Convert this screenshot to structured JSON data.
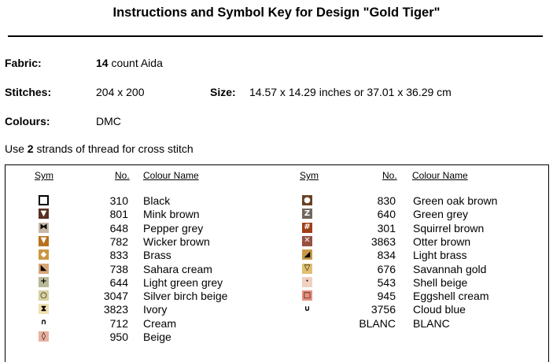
{
  "title": "Instructions and Symbol Key for Design \"Gold Tiger\"",
  "fabric": {
    "label": "Fabric:",
    "count": "14",
    "rest": " count Aida"
  },
  "stitches": {
    "label": "Stitches:",
    "value": "204 x 200"
  },
  "size": {
    "label": "Size:",
    "value": "14.57 x 14.29 inches or 37.01 x 36.29 cm"
  },
  "colours": {
    "label": "Colours:",
    "value": "DMC"
  },
  "usage": {
    "pre": "Use ",
    "strands": "2",
    "post": " strands of thread for cross stitch"
  },
  "headers": {
    "sym": "Sym",
    "no": "No.",
    "name": "Colour Name"
  },
  "left_rows": [
    {
      "glyph": "",
      "bg": "#ffffff",
      "fg": "#000000",
      "border": "#000000",
      "icon": "hollow-square-icon",
      "no": "310",
      "name": "Black"
    },
    {
      "glyph": "▼",
      "bg": "#5a3020",
      "fg": "#ffffff",
      "border": "#5a3020",
      "icon": "triangle-down-icon",
      "no": "801",
      "name": "Mink brown"
    },
    {
      "glyph": "⧓",
      "bg": "#c8b8a8",
      "fg": "#000000",
      "border": "#c8b8a8",
      "icon": "bowtie-icon",
      "no": "648",
      "name": "Pepper grey"
    },
    {
      "glyph": "▼",
      "bg": "#b8701e",
      "fg": "#ffffff",
      "border": "#b8701e",
      "icon": "triangle-down-icon",
      "no": "782",
      "name": "Wicker brown"
    },
    {
      "glyph": "◆",
      "bg": "#c89840",
      "fg": "#ffffff",
      "border": "#c89840",
      "icon": "diamond-icon",
      "no": "833",
      "name": "Brass"
    },
    {
      "glyph": "◣",
      "bg": "#d8a878",
      "fg": "#000000",
      "border": "#d8a878",
      "icon": "corner-triangle-icon",
      "no": "738",
      "name": "Sahara cream"
    },
    {
      "glyph": "+",
      "bg": "#b8b898",
      "fg": "#000000",
      "border": "#b8b898",
      "icon": "plus-icon",
      "no": "644",
      "name": "Light green grey"
    },
    {
      "glyph": "○",
      "bg": "#d8d0a0",
      "fg": "#000000",
      "border": "#d8d0a0",
      "icon": "circle-icon",
      "no": "3047",
      "name": "Silver birch beige"
    },
    {
      "glyph": "⧗",
      "bg": "#f0e0b0",
      "fg": "#000000",
      "border": "#f0e0b0",
      "icon": "hourglass-icon",
      "no": "3823",
      "name": "Ivory"
    },
    {
      "glyph": "∩",
      "bg": "#ffffff",
      "fg": "#000000",
      "border": "#ffffff",
      "icon": "arch-icon",
      "no": "712",
      "name": "Cream"
    },
    {
      "glyph": "◊",
      "bg": "#e8b0a0",
      "fg": "#000000",
      "border": "#e8b0a0",
      "icon": "diamond-outline-icon",
      "no": "950",
      "name": "Beige"
    }
  ],
  "right_rows": [
    {
      "glyph": "●",
      "bg": "#6a4020",
      "fg": "#ffffff",
      "border": "#6a4020",
      "icon": "filled-circle-icon",
      "no": "830",
      "name": "Green oak brown"
    },
    {
      "glyph": "Z",
      "bg": "#706860",
      "fg": "#ffffff",
      "border": "#706860",
      "icon": "z-letter-icon",
      "no": "640",
      "name": "Green grey"
    },
    {
      "glyph": "#",
      "bg": "#a04018",
      "fg": "#ffffff",
      "border": "#a04018",
      "icon": "hash-icon",
      "no": "301",
      "name": "Squirrel brown"
    },
    {
      "glyph": "✕",
      "bg": "#985040",
      "fg": "#ffffff",
      "border": "#985040",
      "icon": "cross-icon",
      "no": "3863",
      "name": "Otter brown"
    },
    {
      "glyph": "◢",
      "bg": "#c89848",
      "fg": "#000000",
      "border": "#c89848",
      "icon": "corner-triangle-icon",
      "no": "834",
      "name": "Light brass"
    },
    {
      "glyph": "▽",
      "bg": "#e0c070",
      "fg": "#000000",
      "border": "#e0c070",
      "icon": "triangle-outline-icon",
      "no": "676",
      "name": "Savannah gold"
    },
    {
      "glyph": "·",
      "bg": "#f0d0c0",
      "fg": "#000000",
      "border": "#f0d0c0",
      "icon": "dot-icon",
      "no": "543",
      "name": "Shell beige"
    },
    {
      "glyph": "□",
      "bg": "#e89080",
      "fg": "#000000",
      "border": "#e89080",
      "icon": "square-outline-icon",
      "no": "945",
      "name": "Eggshell cream"
    },
    {
      "glyph": "∪",
      "bg": "#ffffff",
      "fg": "#000000",
      "border": "#ffffff",
      "icon": "cup-icon",
      "no": "3756",
      "name": "Cloud blue"
    },
    {
      "glyph": "",
      "bg": "#ffffff",
      "fg": "#000000",
      "border": "#ffffff",
      "icon": "blank-icon",
      "no": "BLANC",
      "name": "BLANC"
    }
  ]
}
